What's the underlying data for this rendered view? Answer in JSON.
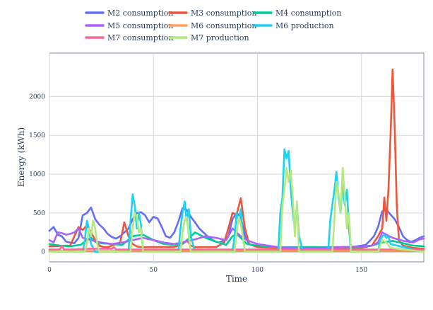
{
  "chart_data": {
    "type": "line",
    "xlabel": "Time",
    "ylabel": "Energy (kWh)",
    "xlim": [
      0,
      180
    ],
    "ylim": [
      -130,
      2560
    ],
    "x_ticks": [
      0,
      50,
      100,
      150
    ],
    "y_ticks": [
      0,
      500,
      1000,
      1500,
      2000
    ],
    "grid": true,
    "legend_position": "top",
    "series": [
      {
        "name": "M2 consumption",
        "color": "#636efa",
        "x": [
          0,
          2,
          4,
          6,
          8,
          10,
          12,
          14,
          16,
          18,
          20,
          22,
          24,
          26,
          28,
          30,
          32,
          34,
          36,
          38,
          40,
          42,
          44,
          46,
          48,
          50,
          52,
          54,
          56,
          58,
          60,
          62,
          64,
          66,
          68,
          70,
          72,
          74,
          76,
          78,
          80,
          82,
          84,
          86,
          88,
          90,
          92,
          94,
          96,
          98,
          100,
          105,
          110,
          115,
          120,
          125,
          130,
          135,
          140,
          145,
          150,
          152,
          154,
          156,
          158,
          160,
          162,
          164,
          166,
          168,
          170,
          172,
          174,
          176,
          178,
          180
        ],
        "y": [
          270,
          320,
          220,
          200,
          130,
          120,
          110,
          180,
          470,
          500,
          570,
          420,
          350,
          300,
          230,
          190,
          170,
          200,
          250,
          300,
          420,
          500,
          510,
          470,
          380,
          450,
          430,
          320,
          200,
          180,
          250,
          390,
          560,
          540,
          450,
          380,
          300,
          250,
          200,
          160,
          130,
          120,
          150,
          200,
          420,
          500,
          450,
          200,
          100,
          80,
          70,
          60,
          50,
          50,
          50,
          50,
          50,
          50,
          60,
          60,
          80,
          90,
          140,
          200,
          320,
          520,
          540,
          480,
          420,
          320,
          200,
          150,
          130,
          150,
          180,
          200
        ]
      },
      {
        "name": "M3 consumption",
        "color": "#ef553b",
        "x": [
          0,
          10,
          12,
          14,
          16,
          18,
          20,
          22,
          24,
          26,
          28,
          30,
          34,
          36,
          38,
          40,
          42,
          44,
          50,
          60,
          64,
          66,
          68,
          70,
          80,
          84,
          86,
          88,
          90,
          92,
          94,
          96,
          100,
          110,
          120,
          130,
          140,
          150,
          155,
          158,
          160,
          161,
          162,
          163,
          164,
          165,
          166,
          167,
          168,
          170,
          175,
          180
        ],
        "y": [
          70,
          80,
          200,
          320,
          280,
          340,
          250,
          150,
          80,
          60,
          60,
          80,
          120,
          380,
          200,
          100,
          70,
          60,
          60,
          60,
          100,
          150,
          80,
          60,
          60,
          120,
          300,
          500,
          480,
          690,
          300,
          100,
          60,
          50,
          40,
          40,
          40,
          50,
          80,
          200,
          300,
          700,
          400,
          800,
          1500,
          2350,
          1600,
          600,
          150,
          80,
          50,
          40
        ]
      },
      {
        "name": "M4 consumption",
        "color": "#00cc96",
        "x": [
          0,
          5,
          10,
          15,
          18,
          20,
          22,
          25,
          30,
          35,
          40,
          45,
          50,
          55,
          60,
          65,
          70,
          75,
          80,
          85,
          88,
          90,
          92,
          95,
          100,
          105,
          110,
          115,
          120,
          125,
          130,
          135,
          140,
          145,
          150,
          155,
          160,
          165,
          170,
          175,
          180
        ],
        "y": [
          100,
          80,
          70,
          90,
          150,
          180,
          130,
          110,
          100,
          90,
          200,
          220,
          150,
          100,
          90,
          120,
          250,
          180,
          130,
          90,
          200,
          230,
          180,
          100,
          80,
          70,
          60,
          60,
          60,
          60,
          60,
          60,
          60,
          60,
          60,
          80,
          120,
          140,
          110,
          80,
          70
        ]
      },
      {
        "name": "M5 consumption",
        "color": "#ab63fa",
        "x": [
          0,
          2,
          4,
          6,
          8,
          10,
          12,
          14,
          16,
          20,
          25,
          30,
          35,
          40,
          45,
          50,
          55,
          60,
          65,
          70,
          75,
          80,
          85,
          88,
          90,
          92,
          95,
          100,
          110,
          120,
          130,
          140,
          150,
          155,
          158,
          160,
          162,
          165,
          170,
          175,
          178,
          180
        ],
        "y": [
          150,
          120,
          250,
          240,
          220,
          230,
          250,
          300,
          180,
          150,
          120,
          100,
          120,
          150,
          180,
          150,
          120,
          100,
          130,
          160,
          200,
          180,
          150,
          300,
          250,
          200,
          150,
          100,
          60,
          50,
          50,
          60,
          70,
          80,
          120,
          250,
          220,
          180,
          140,
          120,
          160,
          170
        ]
      },
      {
        "name": "M6 consumption",
        "color": "#ffa15a",
        "x": [
          0,
          20,
          40,
          60,
          80,
          100,
          120,
          140,
          160,
          180
        ],
        "y": [
          10,
          10,
          10,
          10,
          10,
          10,
          10,
          10,
          10,
          10
        ]
      },
      {
        "name": "M6 production",
        "color": "#19d3f3",
        "x": [
          0,
          16,
          17,
          18,
          19,
          20,
          22,
          38,
          39,
          40,
          41,
          42,
          43,
          44,
          45,
          62,
          63,
          64,
          65,
          66,
          67,
          68,
          70,
          88,
          89,
          90,
          91,
          92,
          93,
          94,
          110,
          111,
          112,
          113,
          114,
          115,
          116,
          117,
          118,
          119,
          120,
          121,
          122,
          134,
          135,
          136,
          137,
          138,
          139,
          140,
          141,
          142,
          143,
          144,
          145,
          158,
          159,
          160,
          161,
          162,
          163,
          164,
          180
        ],
        "y": [
          0,
          0,
          150,
          400,
          300,
          100,
          0,
          0,
          400,
          740,
          600,
          300,
          500,
          350,
          0,
          0,
          300,
          500,
          650,
          400,
          550,
          200,
          0,
          0,
          200,
          500,
          400,
          550,
          200,
          0,
          0,
          500,
          700,
          1320,
          1200,
          1300,
          800,
          500,
          300,
          600,
          200,
          100,
          0,
          0,
          400,
          600,
          800,
          1030,
          700,
          500,
          900,
          600,
          800,
          300,
          0,
          0,
          150,
          200,
          220,
          180,
          200,
          100,
          0
        ]
      },
      {
        "name": "M7 consumption",
        "color": "#ff6692",
        "x": [
          0,
          5,
          6,
          7,
          10,
          20,
          30,
          31,
          32,
          40,
          50,
          60,
          70,
          80,
          90,
          100,
          110,
          120,
          130,
          140,
          150,
          160,
          170,
          180
        ],
        "y": [
          30,
          30,
          80,
          30,
          30,
          40,
          40,
          60,
          30,
          30,
          30,
          30,
          30,
          30,
          30,
          30,
          30,
          30,
          30,
          30,
          30,
          30,
          30,
          30
        ]
      },
      {
        "name": "M7 production",
        "color": "#b6e880",
        "x": [
          0,
          17,
          18,
          19,
          20,
          21,
          22,
          23,
          24,
          39,
          40,
          41,
          42,
          43,
          44,
          45,
          63,
          64,
          65,
          66,
          67,
          68,
          89,
          90,
          91,
          92,
          93,
          94,
          111,
          112,
          113,
          114,
          115,
          116,
          117,
          118,
          119,
          120,
          136,
          137,
          138,
          139,
          140,
          141,
          142,
          143,
          144,
          145,
          158,
          160,
          162,
          164,
          180
        ],
        "y": [
          0,
          0,
          100,
          300,
          200,
          400,
          300,
          100,
          0,
          0,
          300,
          500,
          450,
          250,
          300,
          0,
          0,
          250,
          400,
          450,
          200,
          0,
          0,
          250,
          450,
          350,
          200,
          0,
          0,
          600,
          800,
          1080,
          900,
          1050,
          700,
          200,
          650,
          0,
          0,
          400,
          900,
          750,
          500,
          1080,
          700,
          300,
          500,
          0,
          0,
          150,
          120,
          50,
          0
        ]
      }
    ]
  }
}
